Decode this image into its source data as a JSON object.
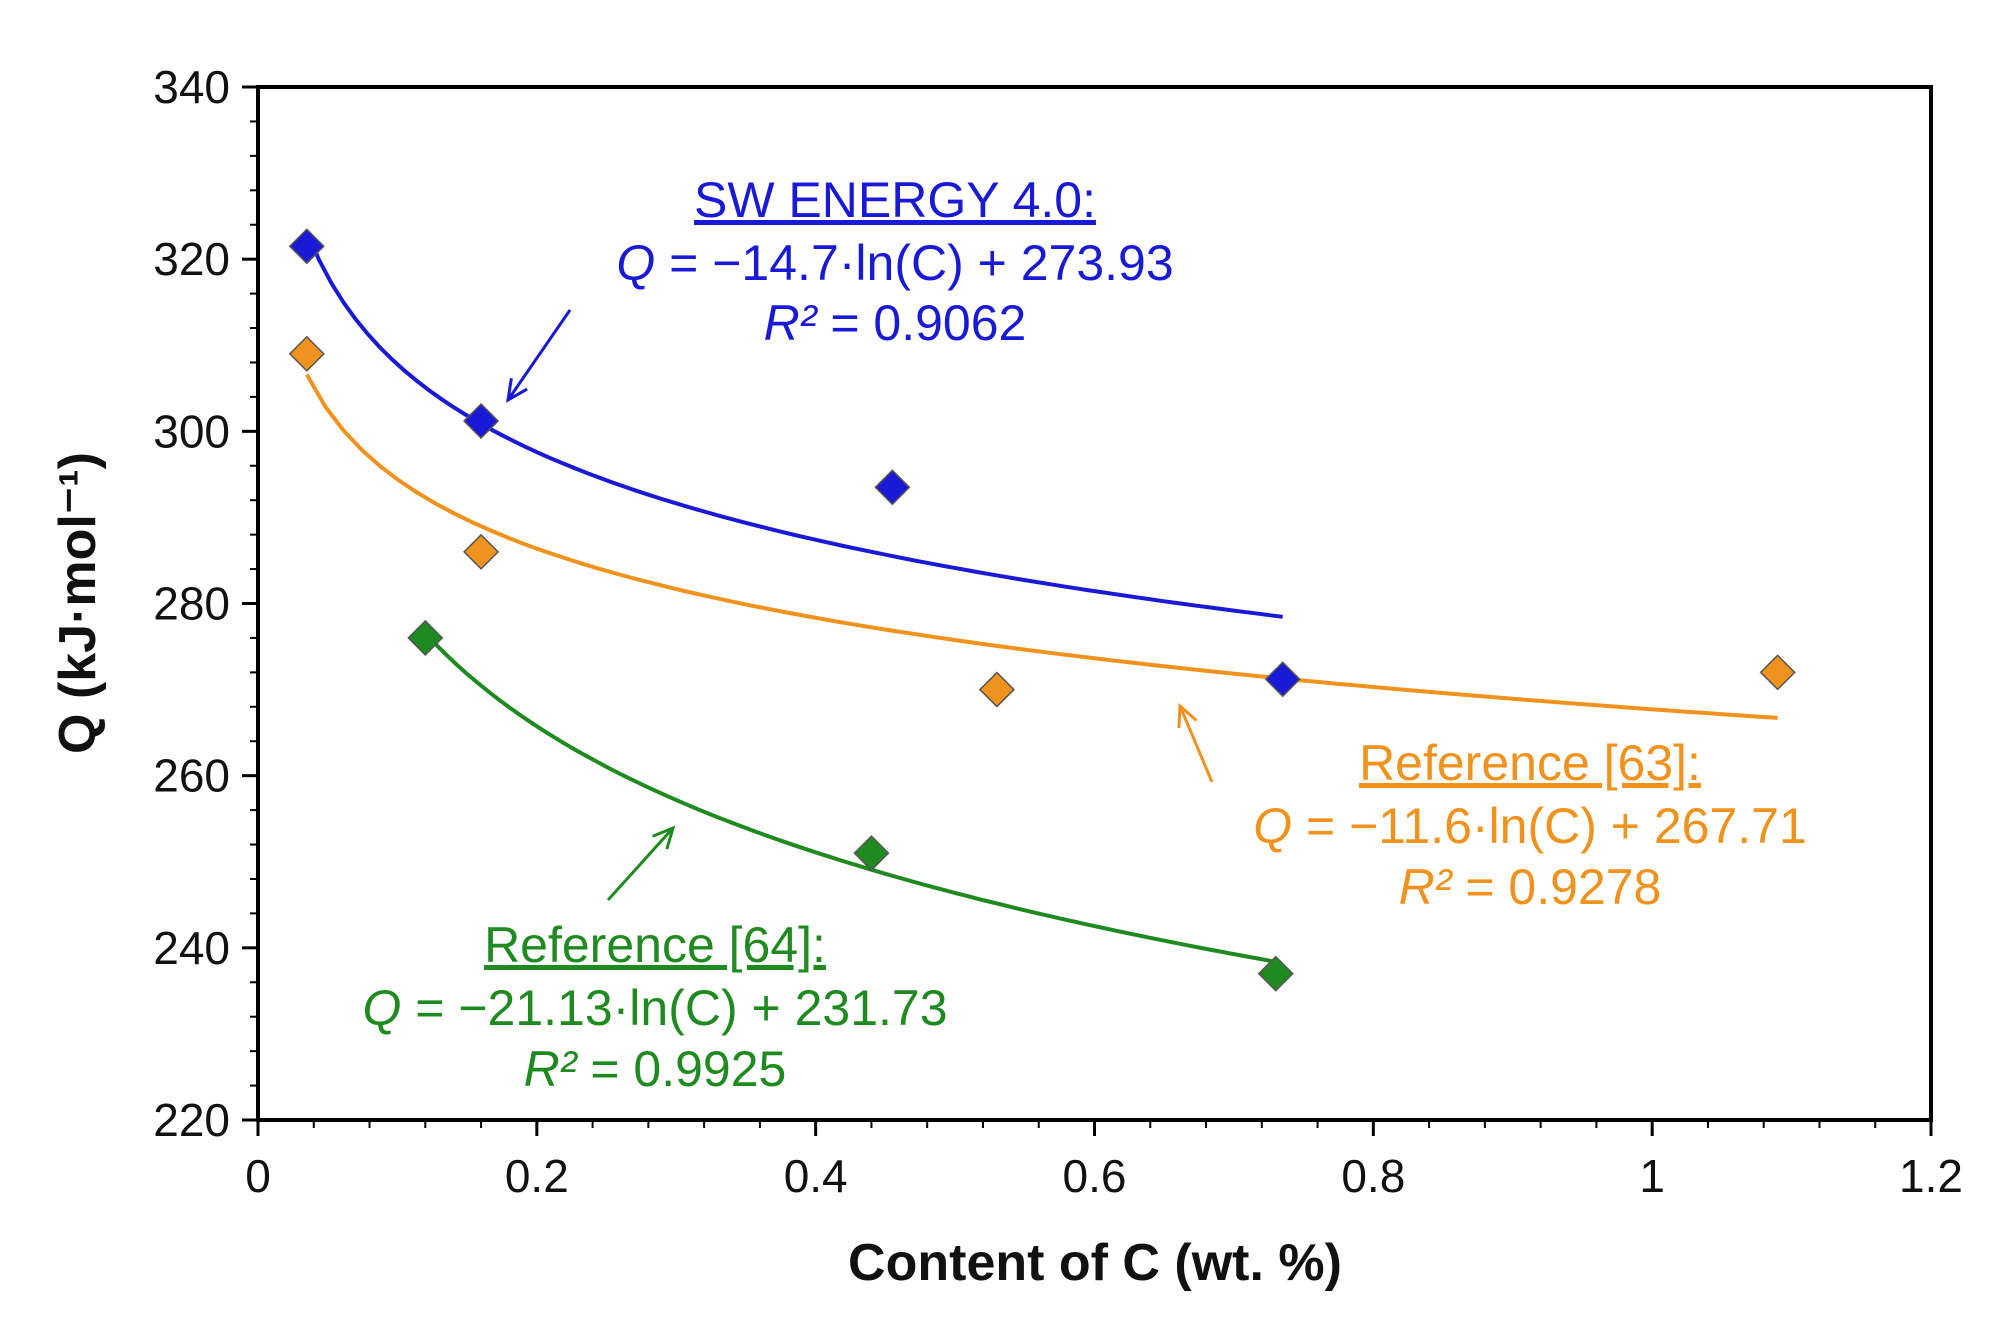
{
  "chart_data": {
    "type": "scatter",
    "xlabel": "Content of C (wt. %)",
    "ylabel": "Q (kJ·mol⁻¹)",
    "xlim": [
      0,
      1.2
    ],
    "ylim": [
      220,
      340
    ],
    "x_ticks": [
      0,
      0.2,
      0.4,
      0.6,
      0.8,
      1,
      1.2
    ],
    "y_ticks": [
      220,
      240,
      260,
      280,
      300,
      320,
      340
    ],
    "x_tick_labels": [
      "0",
      "0.2",
      "0.4",
      "0.6",
      "0.8",
      "1",
      "1.2"
    ],
    "y_tick_labels": [
      "220",
      "240",
      "260",
      "280",
      "300",
      "320",
      "340"
    ],
    "grid": false,
    "series": [
      {
        "name": "SW ENERGY 4.0",
        "color": "#1a1ad6",
        "marker": "diamond",
        "points": [
          {
            "x": 0.035,
            "y": 321.5
          },
          {
            "x": 0.16,
            "y": 301.2
          },
          {
            "x": 0.455,
            "y": 293.5
          },
          {
            "x": 0.735,
            "y": 271.2
          }
        ],
        "fit": {
          "a": -14.7,
          "b": 273.93,
          "x_range": [
            0.035,
            0.735
          ]
        },
        "annotation": {
          "title": "SW ENERGY 4.0:",
          "q_symbol": "Q",
          "equation": " = −14.7·ln(C) + 273.93",
          "r_symbol": "R²",
          "r_value": " = 0.9062"
        }
      },
      {
        "name": "Reference [63]",
        "color": "#f0921e",
        "marker": "diamond",
        "points": [
          {
            "x": 0.035,
            "y": 309
          },
          {
            "x": 0.16,
            "y": 286
          },
          {
            "x": 0.53,
            "y": 270
          },
          {
            "x": 1.09,
            "y": 272
          }
        ],
        "fit": {
          "a": -11.6,
          "b": 267.71,
          "x_range": [
            0.035,
            1.09
          ]
        },
        "annotation": {
          "title": "Reference [63]:",
          "q_symbol": "Q",
          "equation": " = −11.6·ln(C) + 267.71",
          "r_symbol": "R²",
          "r_value": " = 0.9278"
        }
      },
      {
        "name": "Reference [64]",
        "color": "#1f8a1f",
        "marker": "diamond",
        "points": [
          {
            "x": 0.12,
            "y": 276
          },
          {
            "x": 0.44,
            "y": 251
          },
          {
            "x": 0.73,
            "y": 237
          }
        ],
        "fit": {
          "a": -21.13,
          "b": 231.73,
          "x_range": [
            0.12,
            0.73
          ]
        },
        "annotation": {
          "title": "Reference [64]:",
          "q_symbol": "Q",
          "equation": " = −21.13·ln(C) + 231.73",
          "r_symbol": "R²",
          "r_value": " = 0.9925"
        }
      }
    ]
  }
}
